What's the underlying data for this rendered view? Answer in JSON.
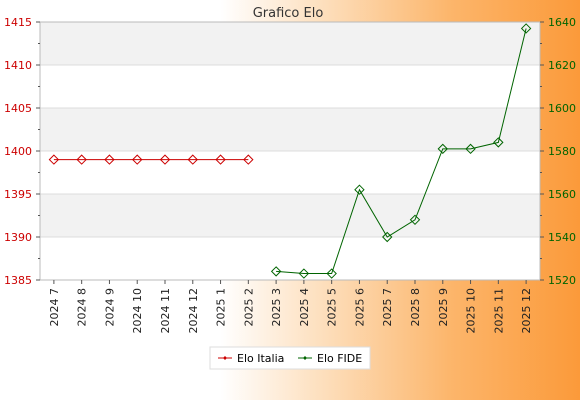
{
  "chart_data": {
    "type": "line",
    "title": "Grafico Elo",
    "categories": [
      "2024 7",
      "2024 8",
      "2024 9",
      "2024 10",
      "2024 11",
      "2024 12",
      "2025 1",
      "2025 2",
      "2025 3",
      "2025 4",
      "2025 5",
      "2025 6",
      "2025 7",
      "2025 8",
      "2025 9",
      "2025 10",
      "2025 11",
      "2025 12"
    ],
    "y_left": {
      "ylim": [
        1385,
        1415
      ],
      "ticks": [
        1385,
        1390,
        1395,
        1400,
        1405,
        1410,
        1415
      ],
      "color": "#cc0000"
    },
    "y_right": {
      "ylim": [
        1520,
        1640
      ],
      "ticks": [
        1520,
        1540,
        1560,
        1580,
        1600,
        1620,
        1640
      ],
      "color": "#006400"
    },
    "series": [
      {
        "name": "Elo Italia",
        "axis": "left",
        "color": "#cc0000",
        "values": [
          1399,
          1399,
          1399,
          1399,
          1399,
          1399,
          1399,
          1399,
          null,
          null,
          null,
          null,
          null,
          null,
          null,
          null,
          null,
          null
        ]
      },
      {
        "name": "Elo FIDE",
        "axis": "right",
        "color": "#006400",
        "values": [
          null,
          null,
          null,
          null,
          null,
          null,
          null,
          null,
          1524,
          1523,
          1523,
          1562,
          1540,
          1548,
          1581,
          1581,
          1584,
          1637
        ]
      }
    ],
    "grid": true,
    "legend": "bottom-center"
  }
}
